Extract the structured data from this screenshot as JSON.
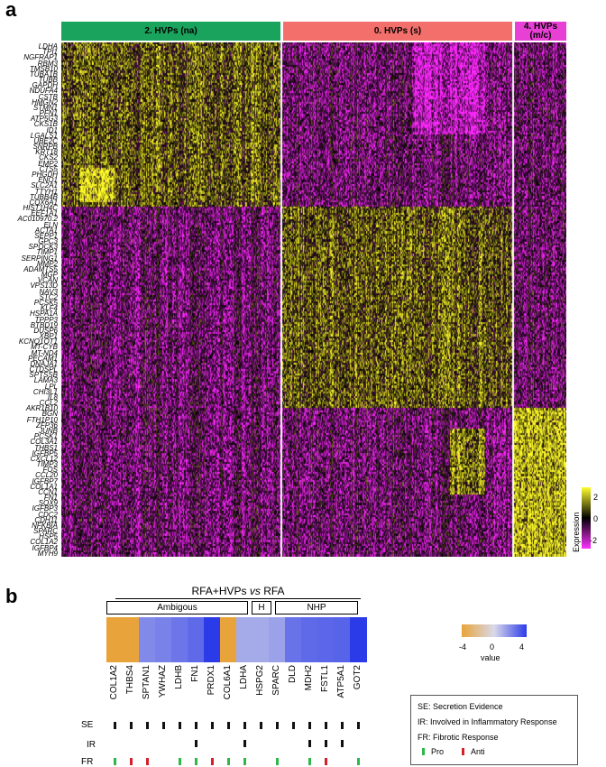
{
  "panel_a": {
    "letter": "a",
    "clusters": [
      {
        "label": "2. HVPs (na)",
        "color": "#1aa35c"
      },
      {
        "label": "0. HVPs (s)",
        "color": "#f26f6b"
      },
      {
        "label_line1": "4. HVPs",
        "label_line2": "(m/c)",
        "color": "#e83fd5"
      }
    ],
    "genes": [
      "LDHA",
      "TPI1",
      "NGFRAP1",
      "RBM3",
      "TMSB10",
      "TUBA1B",
      "TUBB",
      "GAPDH",
      "NDUFA4",
      "CSTB",
      "HMGN2",
      "STMN1",
      "PFN1",
      "ATP5G3",
      "CKS1B",
      "ID1",
      "LGALS1",
      "UBE2C",
      "SNRPB",
      "KRT18",
      "CKS2",
      "EMP2",
      "CTS5",
      "PHGDH",
      "ENO1",
      "SLC2A1",
      "TTYH1",
      "TUBB4B",
      "COX6A1",
      "HIST1H4C",
      "EEF1A1",
      "AC010970.2",
      "ELN",
      "ACTA1",
      "SEPP1",
      "GPC3",
      "SPOCK3",
      "TIMP1",
      "SERPING1",
      "MMP2",
      "ADAMTS5",
      "MGP",
      "VCAN",
      "VPS13D",
      "NAV3",
      "STC2",
      "PCSK5",
      "KLF4",
      "HSPA1A",
      "TPPP3",
      "BTBD19",
      "DUSP6",
      "XBP1",
      "KCNQ1OT1",
      "MT-CYB",
      "MT-ND4",
      "PECAM1",
      "DNAJA1",
      "CTDSPL",
      "SPTSSB",
      "LAMA3",
      "LPL",
      "CHI3L1",
      "IL8",
      "CCL2",
      "AKR1B10",
      "BGN",
      "FTH1P10",
      "ZFP36",
      "JUNB",
      "PCSK1",
      "COL3A1",
      "THBS1",
      "IGFBP5",
      "CXCL12",
      "TIMP3",
      "FOS",
      "CCL20",
      "IGFBP7",
      "COL1A1",
      "CCN1",
      "FN1",
      "SOX9",
      "IGFBP3",
      "CDC2",
      "CDH11",
      "NFKBIA",
      "SPARC",
      "HSP5",
      "COL1A2",
      "IGFBP4",
      "MYH9"
    ],
    "legend": {
      "title": "Expression",
      "ticks": [
        "2",
        "0",
        "-2"
      ]
    }
  },
  "panel_b": {
    "letter": "b",
    "comparison_prefix": "RFA+HVPs",
    "comparison_vs": "vs",
    "comparison_suffix": "RFA",
    "groups": [
      {
        "label": "Ambigous",
        "span": [
          0,
          8
        ]
      },
      {
        "label": "H",
        "span": [
          9,
          9
        ]
      },
      {
        "label": "NHP",
        "span": [
          10,
          14
        ]
      }
    ],
    "genes": [
      "COL1A2",
      "THBS4",
      "SPTAN1",
      "YWHAZ",
      "LDHB",
      "FN1",
      "PRDX1",
      "COL6A1",
      "LDHA",
      "HSPG2",
      "SPARC",
      "DLD",
      "MDH2",
      "FSTL1",
      "ATP5A1",
      "GOT2"
    ],
    "values": [
      -4.2,
      -4.2,
      2.0,
      2.2,
      2.5,
      2.8,
      4.8,
      -4.0,
      1.2,
      1.2,
      1.4,
      2.6,
      2.8,
      2.9,
      3.0,
      5.0
    ],
    "colorbar": {
      "ticks": [
        "-4",
        "0",
        "4"
      ],
      "label": "value",
      "min": -4,
      "max": 4,
      "low_color": "#e8a43a",
      "mid_color": "#d9d9ea",
      "high_color": "#2b3be8"
    },
    "row_labels": [
      "SE",
      "IR",
      "FR"
    ],
    "SE": [
      1,
      1,
      1,
      1,
      1,
      1,
      1,
      1,
      1,
      1,
      1,
      1,
      1,
      1,
      1,
      1
    ],
    "IR": [
      0,
      0,
      0,
      0,
      0,
      1,
      0,
      0,
      1,
      0,
      0,
      0,
      1,
      1,
      1,
      0
    ],
    "FR": [
      "pro",
      "anti",
      "anti",
      null,
      "pro",
      "pro",
      "anti",
      "pro",
      "pro",
      null,
      "pro",
      null,
      "pro",
      "anti",
      null,
      "pro"
    ],
    "key": {
      "line1": "SE: Secretion  Evidence",
      "line2": "IR: Involved in Inflammatory Response",
      "line3": "FR: Fibrotic Response",
      "pro": "Pro",
      "anti": "Anti",
      "pro_color": "#2db84a",
      "anti_color": "#d4202a",
      "se_ir_color": "#111111"
    }
  }
}
